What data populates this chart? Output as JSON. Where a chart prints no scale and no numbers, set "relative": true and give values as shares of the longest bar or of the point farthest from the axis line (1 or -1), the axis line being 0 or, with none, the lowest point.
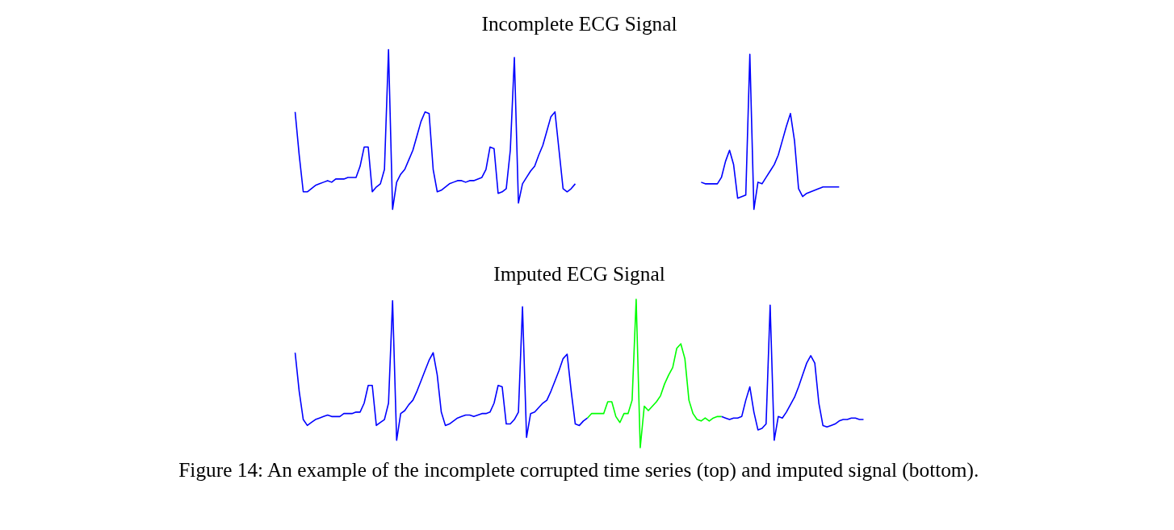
{
  "chart_data": [
    {
      "type": "line",
      "title": "Incomplete ECG Signal",
      "relative": true,
      "categories": [
        null,
        null,
        null,
        null,
        null,
        null,
        null,
        null,
        null,
        null,
        null,
        null,
        null,
        null,
        null,
        null,
        null,
        null,
        null,
        null,
        null,
        null,
        null,
        null,
        null,
        null,
        null,
        null,
        null,
        null,
        null,
        null,
        null,
        null,
        null,
        null,
        null,
        null,
        null,
        null,
        null,
        null,
        null,
        null,
        null,
        null,
        null,
        null,
        null,
        null,
        null,
        null,
        null,
        null,
        null,
        null,
        null,
        null,
        null,
        null,
        null,
        null,
        null,
        null,
        null,
        null,
        null,
        null,
        null,
        null,
        null,
        null,
        null,
        null,
        null,
        null,
        null,
        null,
        null,
        null,
        null,
        null,
        null,
        null,
        null,
        null,
        null,
        null,
        null,
        null,
        null,
        null,
        null,
        null,
        null,
        null,
        null,
        null,
        null,
        null,
        null,
        null,
        null,
        null,
        null,
        null,
        null,
        null,
        null,
        null,
        null,
        null,
        null,
        null,
        null,
        null,
        null,
        null,
        null,
        null,
        null,
        null,
        null,
        null,
        null,
        null,
        null,
        null,
        null,
        null,
        null,
        null,
        null,
        null,
        null,
        null,
        null,
        null,
        null,
        null,
        null
      ],
      "series": [
        {
          "color": "#0000ff",
          "values": [
            0.61,
            0.34,
            0.11,
            0.11,
            0.13,
            0.15,
            0.16,
            0.17,
            0.18,
            0.17,
            0.19,
            0.19,
            0.19,
            0.2,
            0.2,
            0.2,
            0.27,
            0.39,
            0.39,
            0.11,
            0.14,
            0.16,
            0.25,
            1.0,
            0.0,
            0.17,
            0.22,
            0.25,
            0.31,
            0.37,
            0.46,
            0.55,
            0.61,
            0.6,
            0.25,
            0.11,
            0.12,
            0.14,
            0.16,
            0.17,
            0.18,
            0.18,
            0.17,
            0.18,
            0.18,
            0.19,
            0.2,
            0.25,
            0.39,
            0.38,
            0.1,
            0.11,
            0.13,
            0.37,
            0.95,
            0.04,
            0.16,
            0.2,
            0.24,
            0.27,
            0.34,
            0.4,
            0.49,
            0.58,
            0.61,
            0.37,
            0.13,
            0.11,
            0.13,
            0.16,
            null,
            null,
            null,
            null,
            null,
            null,
            null,
            null,
            null,
            null,
            null,
            null,
            null,
            null,
            null,
            null,
            null,
            null,
            null,
            null,
            null,
            null,
            null,
            null,
            null,
            null,
            null,
            null,
            null,
            null,
            null,
            null,
            null,
            null,
            null,
            null,
            null,
            null,
            null,
            null,
            null,
            null,
            null,
            null,
            null,
            null,
            null,
            null,
            null,
            null,
            null,
            null,
            null,
            null,
            null,
            null,
            null,
            null,
            null,
            null,
            null,
            null,
            null,
            null,
            null,
            null,
            null,
            null,
            null,
            null,
            null
          ]
        },
        {
          "color": "#0000ff",
          "values": [
            null,
            null,
            null,
            null,
            null,
            null,
            null,
            null,
            null,
            null,
            null,
            null,
            null,
            null,
            null,
            null,
            null,
            null,
            null,
            null,
            null,
            null,
            null,
            null,
            null,
            null,
            null,
            null,
            null,
            null,
            null,
            null,
            null,
            null,
            null,
            null,
            null,
            null,
            null,
            null,
            null,
            null,
            null,
            null,
            null,
            null,
            null,
            null,
            null,
            null,
            null,
            null,
            null,
            null,
            null,
            null,
            null,
            null,
            null,
            null,
            null,
            null,
            null,
            null,
            null,
            null,
            null,
            null,
            null,
            null,
            null,
            null,
            null,
            null,
            null,
            null,
            null,
            null,
            null,
            null,
            null,
            null,
            null,
            null,
            null,
            null,
            null,
            null,
            null,
            null,
            null,
            null,
            null,
            null,
            null,
            null,
            null,
            null,
            null,
            null,
            0.17,
            0.16,
            0.16,
            0.16,
            0.16,
            0.2,
            0.3,
            0.37,
            0.28,
            0.07,
            0.08,
            0.09,
            0.97,
            0.0,
            0.17,
            0.16,
            0.2,
            0.24,
            0.28,
            0.34,
            0.43,
            0.52,
            0.6,
            0.43,
            0.13,
            0.08,
            0.1,
            0.11,
            0.12,
            0.13,
            0.14,
            0.14,
            0.14,
            0.14,
            0.14,
            null,
            null,
            null,
            null,
            null,
            null
          ]
        }
      ]
    },
    {
      "type": "line",
      "title": "Imputed ECG Signal",
      "relative": true,
      "annotations": [
        "Figure 14: An example of the incomplete corrupted time series (top) and imputed signal (bottom)."
      ],
      "categories": [
        null,
        null,
        null,
        null,
        null,
        null,
        null,
        null,
        null,
        null,
        null,
        null,
        null,
        null,
        null,
        null,
        null,
        null,
        null,
        null,
        null,
        null,
        null,
        null,
        null,
        null,
        null,
        null,
        null,
        null,
        null,
        null,
        null,
        null,
        null,
        null,
        null,
        null,
        null,
        null,
        null,
        null,
        null,
        null,
        null,
        null,
        null,
        null,
        null,
        null,
        null,
        null,
        null,
        null,
        null,
        null,
        null,
        null,
        null,
        null,
        null,
        null,
        null,
        null,
        null,
        null,
        null,
        null,
        null,
        null,
        null,
        null,
        null,
        null,
        null,
        null,
        null,
        null,
        null,
        null,
        null,
        null,
        null,
        null,
        null,
        null,
        null,
        null,
        null,
        null,
        null,
        null,
        null,
        null,
        null,
        null,
        null,
        null,
        null,
        null,
        null,
        null,
        null,
        null,
        null,
        null,
        null,
        null,
        null,
        null,
        null,
        null,
        null,
        null,
        null,
        null,
        null,
        null,
        null,
        null,
        null,
        null,
        null,
        null,
        null,
        null,
        null,
        null,
        null,
        null,
        null,
        null,
        null,
        null,
        null,
        null,
        null,
        null,
        null,
        null,
        null
      ],
      "series": [
        {
          "color": "#0000ff",
          "values": [
            0.64,
            0.38,
            0.19,
            0.15,
            0.17,
            0.19,
            0.2,
            0.21,
            0.22,
            0.21,
            0.21,
            0.21,
            0.23,
            0.23,
            0.23,
            0.24,
            0.24,
            0.3,
            0.42,
            0.42,
            0.15,
            0.17,
            0.19,
            0.3,
            0.99,
            0.05,
            0.23,
            0.25,
            0.29,
            0.32,
            0.38,
            0.45,
            0.52,
            0.59,
            0.64,
            0.49,
            0.24,
            0.15,
            0.16,
            0.18,
            0.2,
            0.21,
            0.22,
            0.22,
            0.21,
            0.22,
            0.23,
            0.23,
            0.24,
            0.3,
            0.42,
            0.41,
            0.16,
            0.16,
            0.19,
            0.24,
            0.95,
            0.07,
            0.23,
            0.24,
            0.27,
            0.3,
            0.32,
            0.38,
            0.45,
            0.52,
            0.6,
            0.63,
            0.38,
            0.16,
            0.15,
            0.18,
            0.2,
            null,
            null,
            null,
            null,
            null,
            null,
            null,
            null,
            null,
            null,
            null,
            null,
            null,
            null,
            null,
            null,
            null,
            null,
            null,
            null,
            null,
            null,
            null,
            null,
            null,
            null,
            null,
            null,
            null,
            null,
            null,
            null,
            null,
            null,
            null,
            null,
            null,
            null,
            null,
            null,
            null,
            null,
            null,
            null,
            null,
            null,
            null,
            null,
            null,
            null,
            null,
            null,
            null,
            null,
            null,
            null,
            null,
            null,
            null,
            null,
            null,
            null,
            null,
            null,
            null,
            null,
            null,
            null
          ]
        },
        {
          "color": "#0000ff",
          "values": [
            null,
            null,
            null,
            null,
            null,
            null,
            null,
            null,
            null,
            null,
            null,
            null,
            null,
            null,
            null,
            null,
            null,
            null,
            null,
            null,
            null,
            null,
            null,
            null,
            null,
            null,
            null,
            null,
            null,
            null,
            null,
            null,
            null,
            null,
            null,
            null,
            null,
            null,
            null,
            null,
            null,
            null,
            null,
            null,
            null,
            null,
            null,
            null,
            null,
            null,
            null,
            null,
            null,
            null,
            null,
            null,
            null,
            null,
            null,
            null,
            null,
            null,
            null,
            null,
            null,
            null,
            null,
            null,
            null,
            null,
            null,
            null,
            null,
            null,
            null,
            null,
            null,
            null,
            null,
            null,
            null,
            null,
            null,
            null,
            null,
            null,
            null,
            null,
            null,
            null,
            null,
            null,
            null,
            null,
            null,
            null,
            null,
            null,
            null,
            null,
            null,
            null,
            null,
            null,
            null,
            0.21,
            0.2,
            0.19,
            0.2,
            0.2,
            0.21,
            0.32,
            0.41,
            0.24,
            0.12,
            0.13,
            0.16,
            0.96,
            0.05,
            0.21,
            0.2,
            0.24,
            0.29,
            0.34,
            0.41,
            0.49,
            0.57,
            0.62,
            0.57,
            0.3,
            0.15,
            0.14,
            0.15,
            0.16,
            0.18,
            0.19,
            0.19,
            0.2,
            0.2,
            0.19,
            0.19
          ]
        },
        {
          "color": "#00ff00",
          "values": [
            null,
            null,
            null,
            null,
            null,
            null,
            null,
            null,
            null,
            null,
            null,
            null,
            null,
            null,
            null,
            null,
            null,
            null,
            null,
            null,
            null,
            null,
            null,
            null,
            null,
            null,
            null,
            null,
            null,
            null,
            null,
            null,
            null,
            null,
            null,
            null,
            null,
            null,
            null,
            null,
            null,
            null,
            null,
            null,
            null,
            null,
            null,
            null,
            null,
            null,
            null,
            null,
            null,
            null,
            null,
            null,
            null,
            null,
            null,
            null,
            null,
            null,
            null,
            null,
            null,
            null,
            null,
            null,
            null,
            null,
            null,
            null,
            0.2,
            0.23,
            0.23,
            0.23,
            0.23,
            0.31,
            0.31,
            0.21,
            0.17,
            0.23,
            0.23,
            0.32,
            1.0,
            0.0,
            0.28,
            0.25,
            0.28,
            0.31,
            0.35,
            0.43,
            0.49,
            0.54,
            0.67,
            0.7,
            0.6,
            0.32,
            0.23,
            0.19,
            0.18,
            0.2,
            0.18,
            0.2,
            0.21,
            0.21,
            null,
            null,
            null,
            null,
            null,
            null,
            null,
            null,
            null,
            null,
            null,
            null,
            null,
            null,
            null,
            null,
            null,
            null,
            null,
            null,
            null,
            null,
            null,
            null,
            null,
            null,
            null,
            null,
            null,
            null,
            null,
            null,
            null,
            null,
            null
          ]
        }
      ]
    }
  ]
}
